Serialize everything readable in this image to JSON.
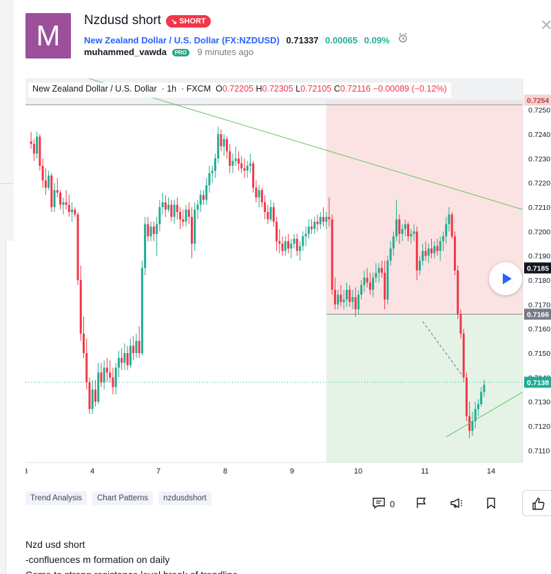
{
  "idea": {
    "avatar_letter": "M",
    "title": "Nzdusd short",
    "badge": "SHORT",
    "symbol_name": "New Zealand Dollar / U.S. Dollar",
    "symbol_code": "(FX:NZDUSD)",
    "price": "0.71337",
    "change": "0.00065",
    "change_pct": "0.09%",
    "author": "muhammed_vawda",
    "author_badge": "PRO",
    "time_ago": "9 minutes ago"
  },
  "legend": {
    "symbol": "New Zealand Dollar / U.S. Dollar",
    "interval": "1h",
    "exchange": "FXCM",
    "o_label": "O",
    "o_value": "0.72205",
    "h_label": "H",
    "h_value": "0.72305",
    "l_label": "L",
    "l_value": "0.72105",
    "c_label": "C",
    "c_value": "0.72116",
    "change": "−0.00089 (−0.12%)"
  },
  "chart_data": {
    "type": "candlestick",
    "x_ticks": [
      "3",
      "4",
      "7",
      "8",
      "9",
      "10",
      "11",
      "14"
    ],
    "y_ticks": [
      "0.7250",
      "0.7240",
      "0.7230",
      "0.7220",
      "0.7210",
      "0.7200",
      "0.7190",
      "0.7180",
      "0.7170",
      "0.7160",
      "0.7150",
      "0.7140",
      "0.7130",
      "0.7120",
      "0.7110"
    ],
    "ylim": [
      0.7105,
      0.7255
    ],
    "price_labels": [
      {
        "text": "0.7254",
        "value": 0.7254,
        "color": "#f6d3d3",
        "text_color": "#c23b3b"
      },
      {
        "text": "0.7185",
        "value": 0.7185,
        "color": "#131722",
        "text_color": "#ffffff"
      },
      {
        "text": "0.7166",
        "value": 0.7166,
        "color": "#787b86",
        "text_color": "#ffffff"
      },
      {
        "text": "0.7138",
        "value": 0.7138,
        "color": "#22ab94",
        "text_color": "#ffffff"
      }
    ],
    "short_position": {
      "entry": 0.7166,
      "stop": 0.7254,
      "target": 0.7105
    },
    "colors": {
      "up": "#22ab94",
      "down": "#f23645",
      "trendline": "#62c462"
    },
    "candles": [
      [
        0.7237,
        0.7241,
        0.7234,
        0.7236
      ],
      [
        0.7236,
        0.7238,
        0.7229,
        0.7232
      ],
      [
        0.7232,
        0.7241,
        0.723,
        0.7239
      ],
      [
        0.7239,
        0.724,
        0.7225,
        0.7227
      ],
      [
        0.7227,
        0.723,
        0.7218,
        0.7221
      ],
      [
        0.7221,
        0.7226,
        0.7215,
        0.7218
      ],
      [
        0.7218,
        0.7225,
        0.7217,
        0.7223
      ],
      [
        0.7223,
        0.7224,
        0.7208,
        0.721
      ],
      [
        0.721,
        0.722,
        0.7208,
        0.7217
      ],
      [
        0.7217,
        0.7222,
        0.7214,
        0.7216
      ],
      [
        0.7216,
        0.7217,
        0.7209,
        0.7211
      ],
      [
        0.7211,
        0.7214,
        0.7207,
        0.7212
      ],
      [
        0.7212,
        0.7217,
        0.7209,
        0.7211
      ],
      [
        0.7211,
        0.7215,
        0.7206,
        0.7208
      ],
      [
        0.7208,
        0.7212,
        0.7204,
        0.7209
      ],
      [
        0.7209,
        0.721,
        0.7206,
        0.7207
      ],
      [
        0.7207,
        0.7208,
        0.7178,
        0.718
      ],
      [
        0.718,
        0.7186,
        0.7155,
        0.7158
      ],
      [
        0.7158,
        0.7165,
        0.7148,
        0.715
      ],
      [
        0.715,
        0.7156,
        0.7135,
        0.7138
      ],
      [
        0.7138,
        0.714,
        0.7125,
        0.7127
      ],
      [
        0.7127,
        0.7139,
        0.7125,
        0.7135
      ],
      [
        0.7135,
        0.7139,
        0.7128,
        0.713
      ],
      [
        0.713,
        0.7146,
        0.7129,
        0.7142
      ],
      [
        0.7142,
        0.7146,
        0.7136,
        0.7138
      ],
      [
        0.7138,
        0.7147,
        0.7135,
        0.7144
      ],
      [
        0.7144,
        0.7148,
        0.7138,
        0.7142
      ],
      [
        0.7142,
        0.7147,
        0.7138,
        0.714
      ],
      [
        0.714,
        0.7144,
        0.7133,
        0.7136
      ],
      [
        0.7136,
        0.7146,
        0.7133,
        0.7144
      ],
      [
        0.7144,
        0.7151,
        0.714,
        0.7148
      ],
      [
        0.7148,
        0.7152,
        0.7143,
        0.7146
      ],
      [
        0.7146,
        0.7154,
        0.7143,
        0.715
      ],
      [
        0.715,
        0.7153,
        0.7143,
        0.7145
      ],
      [
        0.7145,
        0.7156,
        0.7144,
        0.7153
      ],
      [
        0.7153,
        0.7157,
        0.7147,
        0.715
      ],
      [
        0.715,
        0.7158,
        0.7148,
        0.7155
      ],
      [
        0.7155,
        0.7161,
        0.7148,
        0.715
      ],
      [
        0.715,
        0.7188,
        0.7149,
        0.7185
      ],
      [
        0.7185,
        0.7206,
        0.7182,
        0.7203
      ],
      [
        0.7203,
        0.7206,
        0.7196,
        0.7198
      ],
      [
        0.7198,
        0.7204,
        0.7196,
        0.7202
      ],
      [
        0.7202,
        0.7204,
        0.7196,
        0.7199
      ],
      [
        0.7199,
        0.7206,
        0.719,
        0.7203
      ],
      [
        0.7203,
        0.7213,
        0.72,
        0.721
      ],
      [
        0.721,
        0.7216,
        0.7207,
        0.7212
      ],
      [
        0.7212,
        0.7215,
        0.7206,
        0.7209
      ],
      [
        0.7209,
        0.7214,
        0.7208,
        0.7211
      ],
      [
        0.7211,
        0.7213,
        0.7204,
        0.7206
      ],
      [
        0.7206,
        0.7213,
        0.7203,
        0.7211
      ],
      [
        0.7211,
        0.7214,
        0.7205,
        0.7208
      ],
      [
        0.7208,
        0.721,
        0.7201,
        0.7205
      ],
      [
        0.7205,
        0.7209,
        0.7202,
        0.7204
      ],
      [
        0.7204,
        0.7211,
        0.7202,
        0.7209
      ],
      [
        0.7209,
        0.7212,
        0.7203,
        0.7206
      ],
      [
        0.7206,
        0.721,
        0.7189,
        0.7195
      ],
      [
        0.7195,
        0.7212,
        0.7192,
        0.7209
      ],
      [
        0.7209,
        0.7213,
        0.7205,
        0.7211
      ],
      [
        0.7211,
        0.7217,
        0.7208,
        0.7215
      ],
      [
        0.7215,
        0.7217,
        0.7211,
        0.7213
      ],
      [
        0.7213,
        0.7222,
        0.7211,
        0.7219
      ],
      [
        0.7219,
        0.7227,
        0.7216,
        0.7224
      ],
      [
        0.7224,
        0.7227,
        0.722,
        0.7225
      ],
      [
        0.7225,
        0.7232,
        0.7222,
        0.723
      ],
      [
        0.723,
        0.7243,
        0.7228,
        0.724
      ],
      [
        0.724,
        0.7242,
        0.7233,
        0.7235
      ],
      [
        0.7235,
        0.724,
        0.7231,
        0.7238
      ],
      [
        0.7238,
        0.7239,
        0.723,
        0.7233
      ],
      [
        0.7233,
        0.7236,
        0.7224,
        0.7227
      ],
      [
        0.7227,
        0.7232,
        0.7224,
        0.7229
      ],
      [
        0.7229,
        0.7235,
        0.7227,
        0.723
      ],
      [
        0.723,
        0.7233,
        0.7225,
        0.7228
      ],
      [
        0.7228,
        0.7231,
        0.7224,
        0.7226
      ],
      [
        0.7226,
        0.723,
        0.7222,
        0.7225
      ],
      [
        0.7225,
        0.7229,
        0.7222,
        0.7227
      ],
      [
        0.7227,
        0.7232,
        0.7224,
        0.7228
      ],
      [
        0.7228,
        0.7229,
        0.7216,
        0.7218
      ],
      [
        0.7218,
        0.7221,
        0.7212,
        0.7214
      ],
      [
        0.7214,
        0.7219,
        0.721,
        0.7217
      ],
      [
        0.7217,
        0.7218,
        0.721,
        0.7212
      ],
      [
        0.7212,
        0.7215,
        0.7205,
        0.7208
      ],
      [
        0.7208,
        0.7211,
        0.7203,
        0.7205
      ],
      [
        0.7205,
        0.7213,
        0.7204,
        0.721
      ],
      [
        0.721,
        0.7212,
        0.7202,
        0.7204
      ],
      [
        0.7204,
        0.7206,
        0.7192,
        0.7196
      ],
      [
        0.7196,
        0.7201,
        0.7191,
        0.7195
      ],
      [
        0.7195,
        0.7198,
        0.719,
        0.7192
      ],
      [
        0.7192,
        0.7198,
        0.719,
        0.7196
      ],
      [
        0.7196,
        0.7199,
        0.7191,
        0.7193
      ],
      [
        0.7193,
        0.7197,
        0.7189,
        0.7195
      ],
      [
        0.7195,
        0.7199,
        0.7193,
        0.7197
      ],
      [
        0.7197,
        0.7199,
        0.719,
        0.7192
      ],
      [
        0.7192,
        0.7196,
        0.7188,
        0.7194
      ],
      [
        0.7194,
        0.72,
        0.7192,
        0.7198
      ],
      [
        0.7198,
        0.7202,
        0.7194,
        0.7199
      ],
      [
        0.7199,
        0.7205,
        0.7197,
        0.7202
      ],
      [
        0.7202,
        0.7205,
        0.7199,
        0.7201
      ],
      [
        0.7201,
        0.7206,
        0.7199,
        0.7204
      ],
      [
        0.7204,
        0.7207,
        0.72,
        0.7203
      ],
      [
        0.7203,
        0.7208,
        0.7201,
        0.7206
      ],
      [
        0.7206,
        0.721,
        0.7202,
        0.7204
      ],
      [
        0.7204,
        0.7208,
        0.7201,
        0.7206
      ],
      [
        0.7206,
        0.7214,
        0.7202,
        0.7205
      ],
      [
        0.7205,
        0.7207,
        0.7174,
        0.7176
      ],
      [
        0.7176,
        0.7181,
        0.7168,
        0.717
      ],
      [
        0.717,
        0.7176,
        0.7168,
        0.7174
      ],
      [
        0.7174,
        0.7178,
        0.7169,
        0.7171
      ],
      [
        0.7171,
        0.7176,
        0.7168,
        0.7172
      ],
      [
        0.7172,
        0.7179,
        0.7169,
        0.7176
      ],
      [
        0.7176,
        0.7178,
        0.7169,
        0.7171
      ],
      [
        0.7171,
        0.7176,
        0.7168,
        0.7173
      ],
      [
        0.7173,
        0.7177,
        0.7165,
        0.7168
      ],
      [
        0.7168,
        0.7176,
        0.7166,
        0.7174
      ],
      [
        0.7174,
        0.718,
        0.7172,
        0.7178
      ],
      [
        0.7178,
        0.7184,
        0.7175,
        0.7181
      ],
      [
        0.7181,
        0.7185,
        0.7177,
        0.7179
      ],
      [
        0.7179,
        0.7183,
        0.7174,
        0.7176
      ],
      [
        0.7176,
        0.7183,
        0.7173,
        0.7181
      ],
      [
        0.7181,
        0.7187,
        0.7179,
        0.7183
      ],
      [
        0.7183,
        0.7187,
        0.7179,
        0.7185
      ],
      [
        0.7185,
        0.7188,
        0.7181,
        0.7183
      ],
      [
        0.7183,
        0.7188,
        0.7168,
        0.7172
      ],
      [
        0.7172,
        0.719,
        0.717,
        0.7188
      ],
      [
        0.7188,
        0.7196,
        0.7186,
        0.7193
      ],
      [
        0.7193,
        0.72,
        0.719,
        0.7198
      ],
      [
        0.7198,
        0.7213,
        0.7196,
        0.7205
      ],
      [
        0.7205,
        0.7207,
        0.7195,
        0.7199
      ],
      [
        0.7199,
        0.7203,
        0.7196,
        0.7201
      ],
      [
        0.7201,
        0.7205,
        0.7198,
        0.7203
      ],
      [
        0.7203,
        0.7204,
        0.7196,
        0.7198
      ],
      [
        0.7198,
        0.7201,
        0.7195,
        0.7199
      ],
      [
        0.7199,
        0.7203,
        0.7196,
        0.72
      ],
      [
        0.72,
        0.7202,
        0.718,
        0.7184
      ],
      [
        0.7184,
        0.719,
        0.7182,
        0.7188
      ],
      [
        0.7188,
        0.7195,
        0.7186,
        0.7192
      ],
      [
        0.7192,
        0.7196,
        0.7188,
        0.719
      ],
      [
        0.719,
        0.7195,
        0.7187,
        0.7193
      ],
      [
        0.7193,
        0.7197,
        0.7189,
        0.7191
      ],
      [
        0.7191,
        0.7196,
        0.7189,
        0.7194
      ],
      [
        0.7194,
        0.7197,
        0.719,
        0.7192
      ],
      [
        0.7192,
        0.7198,
        0.7188,
        0.7196
      ],
      [
        0.7196,
        0.72,
        0.7192,
        0.7198
      ],
      [
        0.7198,
        0.7206,
        0.7195,
        0.7203
      ],
      [
        0.7203,
        0.721,
        0.72,
        0.7207
      ],
      [
        0.7207,
        0.7208,
        0.7197,
        0.7198
      ],
      [
        0.7198,
        0.72,
        0.7182,
        0.7184
      ],
      [
        0.7184,
        0.7186,
        0.7164,
        0.7166
      ],
      [
        0.7166,
        0.7168,
        0.7156,
        0.7158
      ],
      [
        0.7158,
        0.716,
        0.7138,
        0.714
      ],
      [
        0.714,
        0.7142,
        0.7122,
        0.7124
      ],
      [
        0.7124,
        0.713,
        0.7115,
        0.7118
      ],
      [
        0.7118,
        0.7126,
        0.7116,
        0.7122
      ],
      [
        0.7122,
        0.713,
        0.7119,
        0.7127
      ],
      [
        0.7127,
        0.7131,
        0.7124,
        0.7129
      ],
      [
        0.7129,
        0.7136,
        0.7128,
        0.7134
      ],
      [
        0.7134,
        0.7139,
        0.7132,
        0.7137
      ]
    ]
  },
  "tags": [
    "Trend Analysis",
    "Chart Patterns",
    "nzdusdshort"
  ],
  "actions": {
    "comments_count": "0"
  },
  "description": [
    "Nzd usd short",
    "-confluences m formation on daily",
    "Come to strong resistance level break of trendline"
  ]
}
